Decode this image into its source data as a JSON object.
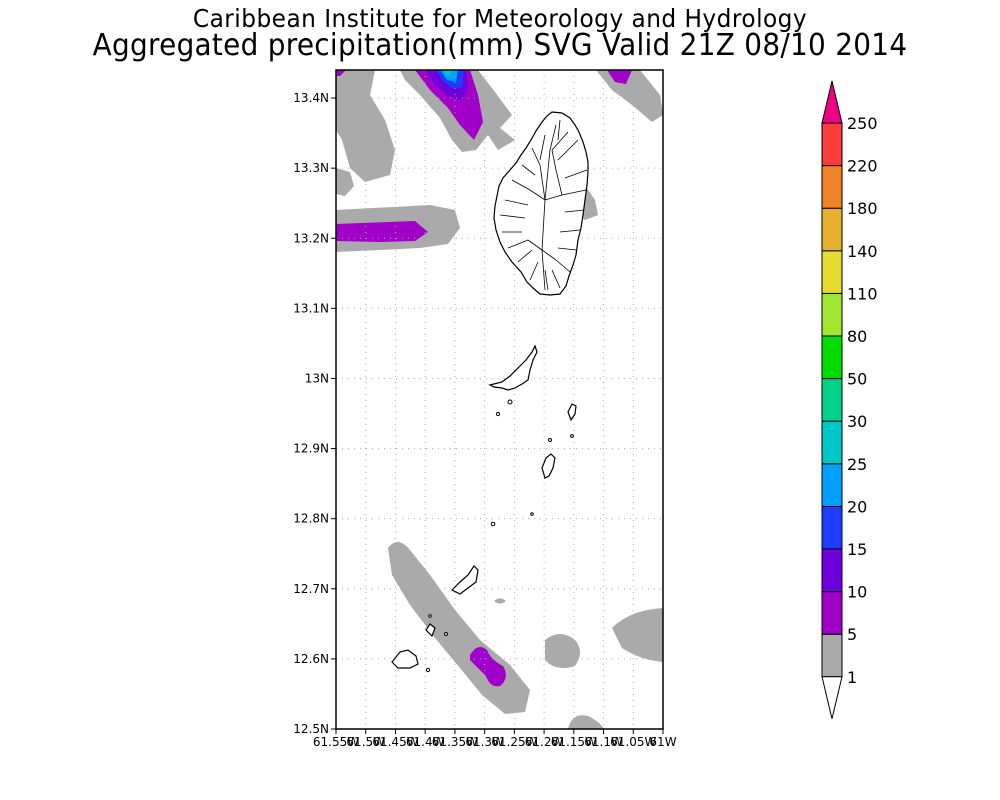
{
  "header": {
    "title": "Caribbean Institute for Meteorology and Hydrology",
    "subtitle": "Aggregated precipitation(mm) SVG Valid 21Z 08/10 2014"
  },
  "map": {
    "lat_range": [
      12.5,
      13.44
    ],
    "lon_range": [
      -61.55,
      -61.0
    ],
    "lat_ticks": [
      {
        "value": 13.4,
        "label": "13.4N"
      },
      {
        "value": 13.3,
        "label": "13.3N"
      },
      {
        "value": 13.2,
        "label": "13.2N"
      },
      {
        "value": 13.1,
        "label": "13.1N"
      },
      {
        "value": 13.0,
        "label": "13N"
      },
      {
        "value": 12.9,
        "label": "12.9N"
      },
      {
        "value": 12.8,
        "label": "12.8N"
      },
      {
        "value": 12.7,
        "label": "12.7N"
      },
      {
        "value": 12.6,
        "label": "12.6N"
      },
      {
        "value": 12.5,
        "label": "12.5N"
      }
    ],
    "lon_ticks": [
      {
        "value": -61.55,
        "label": "61.55W"
      },
      {
        "value": -61.5,
        "label": "61.5W"
      },
      {
        "value": -61.45,
        "label": "61.45W"
      },
      {
        "value": -61.4,
        "label": "61.4W"
      },
      {
        "value": -61.35,
        "label": "61.35W"
      },
      {
        "value": -61.3,
        "label": "61.3W"
      },
      {
        "value": -61.25,
        "label": "61.25W"
      },
      {
        "value": -61.2,
        "label": "61.2W"
      },
      {
        "value": -61.15,
        "label": "61.15W"
      },
      {
        "value": -61.1,
        "label": "61.1W"
      },
      {
        "value": -61.05,
        "label": "61.05W"
      },
      {
        "value": -61.0,
        "label": "61W"
      }
    ]
  },
  "legend": {
    "levels": [
      "1",
      "5",
      "10",
      "15",
      "20",
      "25",
      "30",
      "50",
      "80",
      "110",
      "140",
      "180",
      "220",
      "250"
    ],
    "colors": [
      "#ffffff",
      "#aaaaaa",
      "#a000c8",
      "#6e00dc",
      "#1e3cff",
      "#00a0ff",
      "#00c8c8",
      "#00d28c",
      "#00dc00",
      "#a0e632",
      "#e6dc32",
      "#e6af2d",
      "#f08228",
      "#fa3c3c",
      "#f00082"
    ],
    "color_names": [
      "below-1",
      "1-5",
      "5-10",
      "10-15",
      "15-20",
      "20-25",
      "25-30",
      "30-50",
      "50-80",
      "80-110",
      "110-140",
      "140-180",
      "180-220",
      "220-250",
      "above-250"
    ]
  }
}
